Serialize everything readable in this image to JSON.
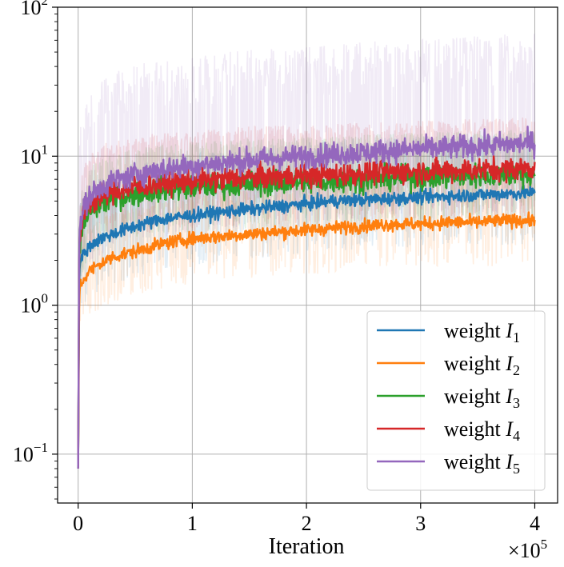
{
  "chart_data": {
    "type": "line",
    "title": "",
    "xlabel": "Iteration",
    "ylabel": "",
    "x_multiplier_label": "×10",
    "x_multiplier_exp": "5",
    "x_scale_factor": 100000,
    "xlim": [
      -0.18,
      4.2
    ],
    "ylim": [
      0.047,
      100
    ],
    "yscale": "log",
    "grid": true,
    "legend_position": "lower right",
    "x_ticks": [
      {
        "value": 0,
        "label": "0"
      },
      {
        "value": 1,
        "label": "1"
      },
      {
        "value": 2,
        "label": "2"
      },
      {
        "value": 3,
        "label": "3"
      },
      {
        "value": 4,
        "label": "4"
      }
    ],
    "y_ticks": [
      {
        "value": 0.1,
        "base": "10",
        "exp": "−1"
      },
      {
        "value": 1,
        "base": "10",
        "exp": "0"
      },
      {
        "value": 10,
        "base": "10",
        "exp": "1"
      },
      {
        "value": 100,
        "base": "10",
        "exp": "2"
      }
    ],
    "x": [
      0,
      0.01,
      0.05,
      0.1,
      0.2,
      0.3,
      0.5,
      0.75,
      1.0,
      1.25,
      1.5,
      1.75,
      2.0,
      2.25,
      2.5,
      2.75,
      3.0,
      3.25,
      3.5,
      3.75,
      4.0
    ],
    "series": [
      {
        "name": "weight I",
        "subscript": "1",
        "color": "#1f77b4",
        "values": [
          0.08,
          1.9,
          2.2,
          2.5,
          2.8,
          3.0,
          3.4,
          3.8,
          4.0,
          4.2,
          4.4,
          4.6,
          4.8,
          5.0,
          5.1,
          5.2,
          5.3,
          5.4,
          5.5,
          5.6,
          5.7
        ],
        "band": [
          1.8,
          2.6
        ]
      },
      {
        "name": "weight I",
        "subscript": "2",
        "color": "#ff7f0e",
        "values": [
          0.08,
          1.3,
          1.5,
          1.7,
          1.9,
          2.1,
          2.3,
          2.6,
          2.8,
          2.9,
          3.0,
          3.1,
          3.2,
          3.3,
          3.4,
          3.5,
          3.5,
          3.6,
          3.6,
          3.7,
          3.7
        ],
        "band": [
          1.6,
          2.0
        ]
      },
      {
        "name": "weight I",
        "subscript": "3",
        "color": "#2ca02c",
        "values": [
          0.08,
          2.5,
          3.5,
          4.2,
          4.8,
          5.2,
          5.6,
          6.0,
          6.2,
          6.4,
          6.5,
          6.6,
          6.7,
          6.8,
          7.0,
          7.1,
          7.2,
          7.3,
          7.4,
          7.5,
          7.6
        ],
        "band": [
          1.6,
          2.0
        ]
      },
      {
        "name": "weight I",
        "subscript": "4",
        "color": "#d62728",
        "values": [
          0.08,
          2.8,
          4.0,
          4.8,
          5.4,
          5.8,
          6.2,
          6.6,
          6.8,
          7.0,
          7.2,
          7.3,
          7.4,
          7.5,
          7.7,
          7.8,
          7.9,
          8.0,
          8.1,
          8.2,
          8.4
        ],
        "band": [
          1.7,
          2.2
        ]
      },
      {
        "name": "weight I",
        "subscript": "5",
        "color": "#9467bd",
        "values": [
          0.08,
          3.2,
          4.5,
          5.4,
          6.2,
          6.8,
          7.5,
          8.2,
          8.6,
          9.0,
          9.4,
          9.7,
          10.0,
          10.3,
          10.6,
          10.9,
          11.2,
          11.4,
          11.7,
          12.0,
          12.3
        ],
        "band": [
          2.5,
          5.5
        ]
      }
    ]
  }
}
